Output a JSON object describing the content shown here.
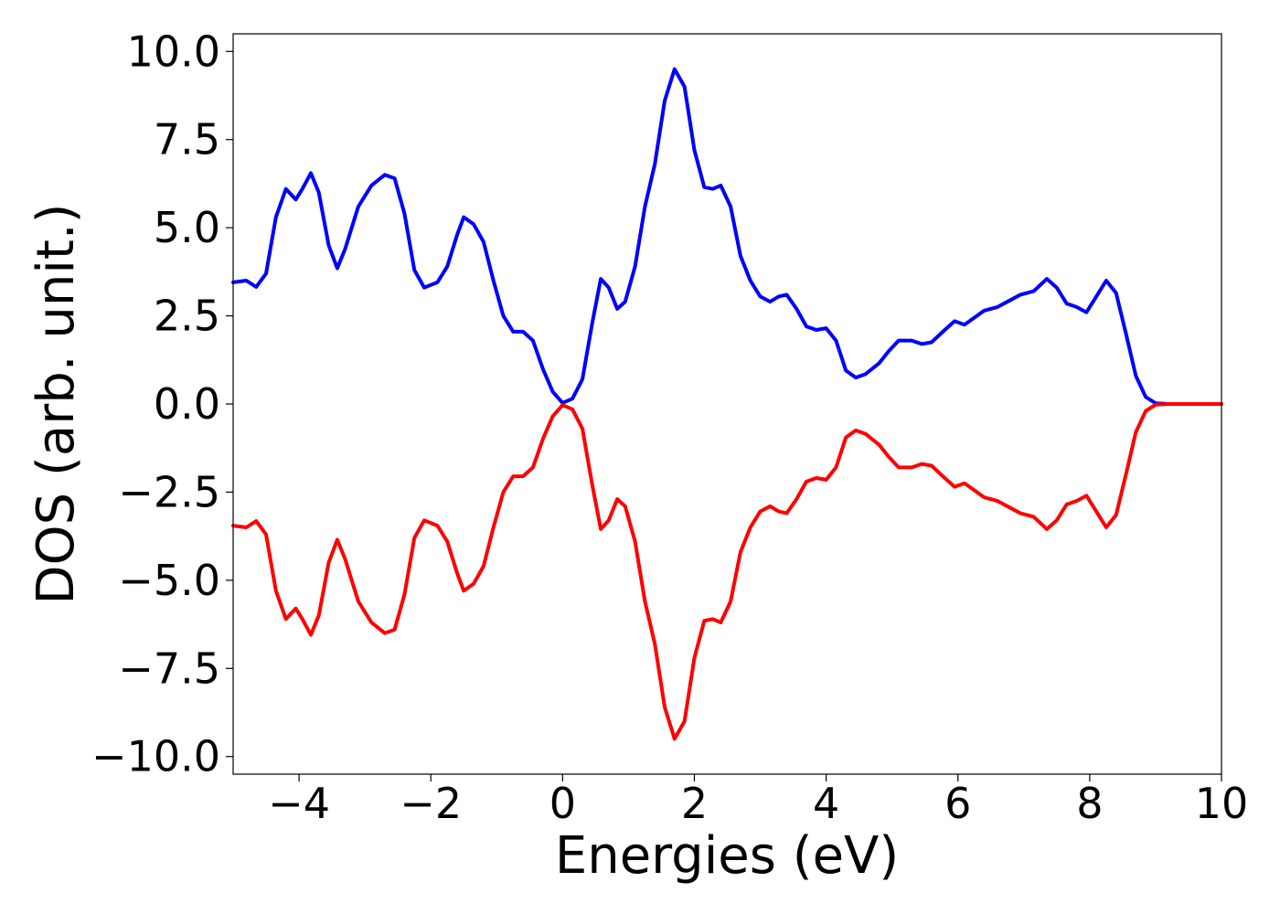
{
  "chart_data": {
    "type": "line",
    "title": "",
    "xlabel": "Energies (eV)",
    "ylabel": "DOS (arb. unit.)",
    "xlim": [
      -5,
      10
    ],
    "ylim": [
      -10.5,
      10.5
    ],
    "grid": false,
    "xticks": [
      -4,
      -2,
      0,
      2,
      4,
      6,
      8,
      10
    ],
    "xtick_labels": [
      "−4",
      "−2",
      "0",
      "2",
      "4",
      "6",
      "8",
      "10"
    ],
    "yticks": [
      10,
      7.5,
      5,
      2.5,
      0,
      -2.5,
      -5,
      -7.5,
      -10
    ],
    "ytick_labels": [
      "10.0",
      "7.5",
      "5.0",
      "2.5",
      "0.0",
      "−2.5",
      "−5.0",
      "−7.5",
      "−10.0"
    ],
    "series": [
      {
        "color": "#0000ff",
        "points": [
          [
            -5.0,
            3.45
          ],
          [
            -4.8,
            3.5
          ],
          [
            -4.65,
            3.32
          ],
          [
            -4.5,
            3.7
          ],
          [
            -4.35,
            5.3
          ],
          [
            -4.2,
            6.1
          ],
          [
            -4.05,
            5.8
          ],
          [
            -3.95,
            6.1
          ],
          [
            -3.82,
            6.55
          ],
          [
            -3.7,
            6.0
          ],
          [
            -3.55,
            4.5
          ],
          [
            -3.42,
            3.85
          ],
          [
            -3.3,
            4.4
          ],
          [
            -3.1,
            5.6
          ],
          [
            -2.9,
            6.2
          ],
          [
            -2.7,
            6.5
          ],
          [
            -2.55,
            6.4
          ],
          [
            -2.4,
            5.4
          ],
          [
            -2.25,
            3.8
          ],
          [
            -2.1,
            3.3
          ],
          [
            -1.9,
            3.45
          ],
          [
            -1.75,
            3.9
          ],
          [
            -1.6,
            4.8
          ],
          [
            -1.5,
            5.3
          ],
          [
            -1.35,
            5.1
          ],
          [
            -1.2,
            4.6
          ],
          [
            -1.05,
            3.5
          ],
          [
            -0.9,
            2.5
          ],
          [
            -0.75,
            2.05
          ],
          [
            -0.6,
            2.05
          ],
          [
            -0.45,
            1.8
          ],
          [
            -0.3,
            1.0
          ],
          [
            -0.15,
            0.35
          ],
          [
            0.0,
            0.03
          ],
          [
            0.15,
            0.15
          ],
          [
            0.3,
            0.7
          ],
          [
            0.45,
            2.3
          ],
          [
            0.58,
            3.55
          ],
          [
            0.7,
            3.3
          ],
          [
            0.83,
            2.7
          ],
          [
            0.95,
            2.9
          ],
          [
            1.1,
            3.9
          ],
          [
            1.25,
            5.6
          ],
          [
            1.4,
            6.8
          ],
          [
            1.55,
            8.6
          ],
          [
            1.7,
            9.5
          ],
          [
            1.85,
            9.0
          ],
          [
            2.0,
            7.2
          ],
          [
            2.15,
            6.15
          ],
          [
            2.28,
            6.1
          ],
          [
            2.4,
            6.2
          ],
          [
            2.55,
            5.6
          ],
          [
            2.7,
            4.2
          ],
          [
            2.85,
            3.5
          ],
          [
            3.0,
            3.05
          ],
          [
            3.15,
            2.9
          ],
          [
            3.28,
            3.05
          ],
          [
            3.4,
            3.1
          ],
          [
            3.55,
            2.7
          ],
          [
            3.7,
            2.2
          ],
          [
            3.85,
            2.1
          ],
          [
            4.0,
            2.15
          ],
          [
            4.15,
            1.8
          ],
          [
            4.3,
            0.95
          ],
          [
            4.45,
            0.75
          ],
          [
            4.6,
            0.85
          ],
          [
            4.8,
            1.15
          ],
          [
            4.95,
            1.5
          ],
          [
            5.1,
            1.8
          ],
          [
            5.3,
            1.8
          ],
          [
            5.45,
            1.7
          ],
          [
            5.6,
            1.75
          ],
          [
            5.8,
            2.1
          ],
          [
            5.95,
            2.35
          ],
          [
            6.1,
            2.25
          ],
          [
            6.25,
            2.45
          ],
          [
            6.4,
            2.65
          ],
          [
            6.6,
            2.75
          ],
          [
            6.8,
            2.95
          ],
          [
            6.95,
            3.1
          ],
          [
            7.15,
            3.2
          ],
          [
            7.35,
            3.55
          ],
          [
            7.5,
            3.3
          ],
          [
            7.65,
            2.85
          ],
          [
            7.8,
            2.75
          ],
          [
            7.95,
            2.6
          ],
          [
            8.1,
            3.05
          ],
          [
            8.25,
            3.5
          ],
          [
            8.4,
            3.15
          ],
          [
            8.55,
            2.0
          ],
          [
            8.7,
            0.8
          ],
          [
            8.85,
            0.2
          ],
          [
            9.0,
            0.02
          ],
          [
            9.2,
            0.0
          ],
          [
            10.0,
            0.0
          ]
        ]
      },
      {
        "color": "#ff0000",
        "points": [
          [
            -5.0,
            -3.45
          ],
          [
            -4.8,
            -3.5
          ],
          [
            -4.65,
            -3.32
          ],
          [
            -4.5,
            -3.7
          ],
          [
            -4.35,
            -5.3
          ],
          [
            -4.2,
            -6.1
          ],
          [
            -4.05,
            -5.8
          ],
          [
            -3.95,
            -6.1
          ],
          [
            -3.82,
            -6.55
          ],
          [
            -3.7,
            -6.0
          ],
          [
            -3.55,
            -4.5
          ],
          [
            -3.42,
            -3.85
          ],
          [
            -3.3,
            -4.4
          ],
          [
            -3.1,
            -5.6
          ],
          [
            -2.9,
            -6.2
          ],
          [
            -2.7,
            -6.5
          ],
          [
            -2.55,
            -6.4
          ],
          [
            -2.4,
            -5.4
          ],
          [
            -2.25,
            -3.8
          ],
          [
            -2.1,
            -3.3
          ],
          [
            -1.9,
            -3.45
          ],
          [
            -1.75,
            -3.9
          ],
          [
            -1.6,
            -4.8
          ],
          [
            -1.5,
            -5.3
          ],
          [
            -1.35,
            -5.1
          ],
          [
            -1.2,
            -4.6
          ],
          [
            -1.05,
            -3.5
          ],
          [
            -0.9,
            -2.5
          ],
          [
            -0.75,
            -2.05
          ],
          [
            -0.6,
            -2.05
          ],
          [
            -0.45,
            -1.8
          ],
          [
            -0.3,
            -1.0
          ],
          [
            -0.15,
            -0.35
          ],
          [
            0.0,
            -0.03
          ],
          [
            0.15,
            -0.15
          ],
          [
            0.3,
            -0.7
          ],
          [
            0.45,
            -2.3
          ],
          [
            0.58,
            -3.55
          ],
          [
            0.7,
            -3.3
          ],
          [
            0.83,
            -2.7
          ],
          [
            0.95,
            -2.9
          ],
          [
            1.1,
            -3.9
          ],
          [
            1.25,
            -5.6
          ],
          [
            1.4,
            -6.8
          ],
          [
            1.55,
            -8.6
          ],
          [
            1.7,
            -9.5
          ],
          [
            1.85,
            -9.0
          ],
          [
            2.0,
            -7.2
          ],
          [
            2.15,
            -6.15
          ],
          [
            2.28,
            -6.1
          ],
          [
            2.4,
            -6.2
          ],
          [
            2.55,
            -5.6
          ],
          [
            2.7,
            -4.2
          ],
          [
            2.85,
            -3.5
          ],
          [
            3.0,
            -3.05
          ],
          [
            3.15,
            -2.9
          ],
          [
            3.28,
            -3.05
          ],
          [
            3.4,
            -3.1
          ],
          [
            3.55,
            -2.7
          ],
          [
            3.7,
            -2.2
          ],
          [
            3.85,
            -2.1
          ],
          [
            4.0,
            -2.15
          ],
          [
            4.15,
            -1.8
          ],
          [
            4.3,
            -0.95
          ],
          [
            4.45,
            -0.75
          ],
          [
            4.6,
            -0.85
          ],
          [
            4.8,
            -1.15
          ],
          [
            4.95,
            -1.5
          ],
          [
            5.1,
            -1.8
          ],
          [
            5.3,
            -1.8
          ],
          [
            5.45,
            -1.7
          ],
          [
            5.6,
            -1.75
          ],
          [
            5.8,
            -2.1
          ],
          [
            5.95,
            -2.35
          ],
          [
            6.1,
            -2.25
          ],
          [
            6.25,
            -2.45
          ],
          [
            6.4,
            -2.65
          ],
          [
            6.6,
            -2.75
          ],
          [
            6.8,
            -2.95
          ],
          [
            6.95,
            -3.1
          ],
          [
            7.15,
            -3.2
          ],
          [
            7.35,
            -3.55
          ],
          [
            7.5,
            -3.3
          ],
          [
            7.65,
            -2.85
          ],
          [
            7.8,
            -2.75
          ],
          [
            7.95,
            -2.6
          ],
          [
            8.1,
            -3.05
          ],
          [
            8.25,
            -3.5
          ],
          [
            8.4,
            -3.15
          ],
          [
            8.55,
            -2.0
          ],
          [
            8.7,
            -0.8
          ],
          [
            8.85,
            -0.2
          ],
          [
            9.0,
            -0.02
          ],
          [
            9.2,
            0.0
          ],
          [
            10.0,
            0.0
          ]
        ]
      }
    ]
  }
}
